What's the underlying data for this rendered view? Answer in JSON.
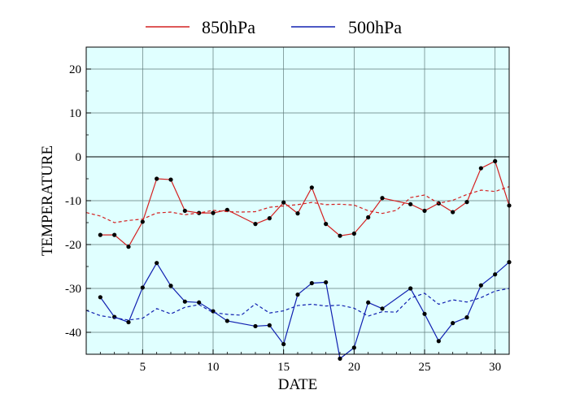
{
  "chart_data": {
    "type": "line",
    "xlabel": "DATE",
    "ylabel": "TEMPERATURE",
    "xlim": [
      1,
      31
    ],
    "ylim": [
      -45,
      25
    ],
    "x_ticks": [
      5,
      10,
      15,
      20,
      25,
      30
    ],
    "y_ticks": [
      20,
      10,
      0,
      -10,
      -20,
      -30,
      -40
    ],
    "grid": true,
    "legend_position": "top-center",
    "plot_background": "#e0ffff",
    "series": [
      {
        "name": "850hPa",
        "color": "#d42020",
        "style": "solid",
        "markers": true,
        "points": [
          [
            2,
            -17.8
          ],
          [
            3,
            -17.8
          ],
          [
            4,
            -20.5
          ],
          [
            5,
            -14.8
          ],
          [
            6,
            -5.0
          ],
          [
            7,
            -5.2
          ],
          [
            8,
            -12.3
          ],
          [
            9,
            -12.8
          ],
          [
            10,
            -12.8
          ],
          [
            11,
            -12.1
          ],
          [
            13,
            -15.3
          ],
          [
            14,
            -14.0
          ],
          [
            15,
            -10.4
          ],
          [
            16,
            -12.9
          ],
          [
            17,
            -7.0
          ],
          [
            18,
            -15.3
          ],
          [
            19,
            -18.0
          ],
          [
            20,
            -17.5
          ],
          [
            21,
            -13.8
          ],
          [
            22,
            -9.4
          ],
          [
            24,
            -10.8
          ],
          [
            25,
            -12.3
          ],
          [
            26,
            -10.6
          ],
          [
            27,
            -12.6
          ],
          [
            28,
            -10.3
          ],
          [
            29,
            -2.6
          ],
          [
            30,
            -1.0
          ],
          [
            31,
            -11.1
          ]
        ]
      },
      {
        "name": "",
        "color": "#d42020",
        "style": "dashed",
        "markers": false,
        "points": [
          [
            1,
            -12.7
          ],
          [
            2,
            -13.5
          ],
          [
            3,
            -15.0
          ],
          [
            4,
            -14.5
          ],
          [
            5,
            -14.2
          ],
          [
            6,
            -12.8
          ],
          [
            7,
            -12.6
          ],
          [
            8,
            -13.2
          ],
          [
            9,
            -12.8
          ],
          [
            10,
            -12.2
          ],
          [
            11,
            -12.5
          ],
          [
            12,
            -12.6
          ],
          [
            13,
            -12.5
          ],
          [
            14,
            -11.5
          ],
          [
            15,
            -11.2
          ],
          [
            16,
            -10.9
          ],
          [
            17,
            -10.4
          ],
          [
            18,
            -10.9
          ],
          [
            19,
            -10.8
          ],
          [
            20,
            -11.0
          ],
          [
            21,
            -12.3
          ],
          [
            22,
            -12.9
          ],
          [
            23,
            -12.2
          ],
          [
            24,
            -9.3
          ],
          [
            25,
            -8.7
          ],
          [
            26,
            -10.6
          ],
          [
            27,
            -9.9
          ],
          [
            28,
            -8.6
          ],
          [
            29,
            -7.6
          ],
          [
            30,
            -7.9
          ],
          [
            31,
            -6.8
          ]
        ]
      },
      {
        "name": "500hPa",
        "color": "#1020b0",
        "style": "solid",
        "markers": true,
        "points": [
          [
            2,
            -32.0
          ],
          [
            3,
            -36.5
          ],
          [
            4,
            -37.7
          ],
          [
            5,
            -29.8
          ],
          [
            6,
            -24.2
          ],
          [
            7,
            -29.4
          ],
          [
            8,
            -33.0
          ],
          [
            9,
            -33.2
          ],
          [
            10,
            -35.2
          ],
          [
            11,
            -37.4
          ],
          [
            13,
            -38.6
          ],
          [
            14,
            -38.4
          ],
          [
            15,
            -42.7
          ],
          [
            16,
            -31.4
          ],
          [
            17,
            -28.8
          ],
          [
            18,
            -28.6
          ],
          [
            19,
            -46.0
          ],
          [
            20,
            -43.5
          ],
          [
            21,
            -33.2
          ],
          [
            22,
            -34.6
          ],
          [
            24,
            -30.0
          ],
          [
            25,
            -35.8
          ],
          [
            26,
            -42.0
          ],
          [
            27,
            -37.9
          ],
          [
            28,
            -36.6
          ],
          [
            29,
            -29.3
          ],
          [
            30,
            -26.8
          ],
          [
            31,
            -24.0
          ]
        ]
      },
      {
        "name": "",
        "color": "#1020b0",
        "style": "dashed",
        "markers": false,
        "points": [
          [
            1,
            -35.0
          ],
          [
            2,
            -36.2
          ],
          [
            3,
            -36.7
          ],
          [
            4,
            -37.2
          ],
          [
            5,
            -36.8
          ],
          [
            6,
            -34.6
          ],
          [
            7,
            -35.8
          ],
          [
            8,
            -34.3
          ],
          [
            9,
            -33.7
          ],
          [
            10,
            -35.5
          ],
          [
            11,
            -35.9
          ],
          [
            12,
            -36.1
          ],
          [
            13,
            -33.5
          ],
          [
            14,
            -35.6
          ],
          [
            15,
            -35.1
          ],
          [
            16,
            -33.9
          ],
          [
            17,
            -33.6
          ],
          [
            18,
            -34.0
          ],
          [
            19,
            -33.8
          ],
          [
            20,
            -34.5
          ],
          [
            21,
            -36.3
          ],
          [
            22,
            -35.3
          ],
          [
            23,
            -35.4
          ],
          [
            24,
            -32.2
          ],
          [
            25,
            -31.1
          ],
          [
            26,
            -33.6
          ],
          [
            27,
            -32.6
          ],
          [
            28,
            -33.1
          ],
          [
            29,
            -32.1
          ],
          [
            30,
            -30.6
          ],
          [
            31,
            -30.0
          ]
        ]
      }
    ]
  }
}
